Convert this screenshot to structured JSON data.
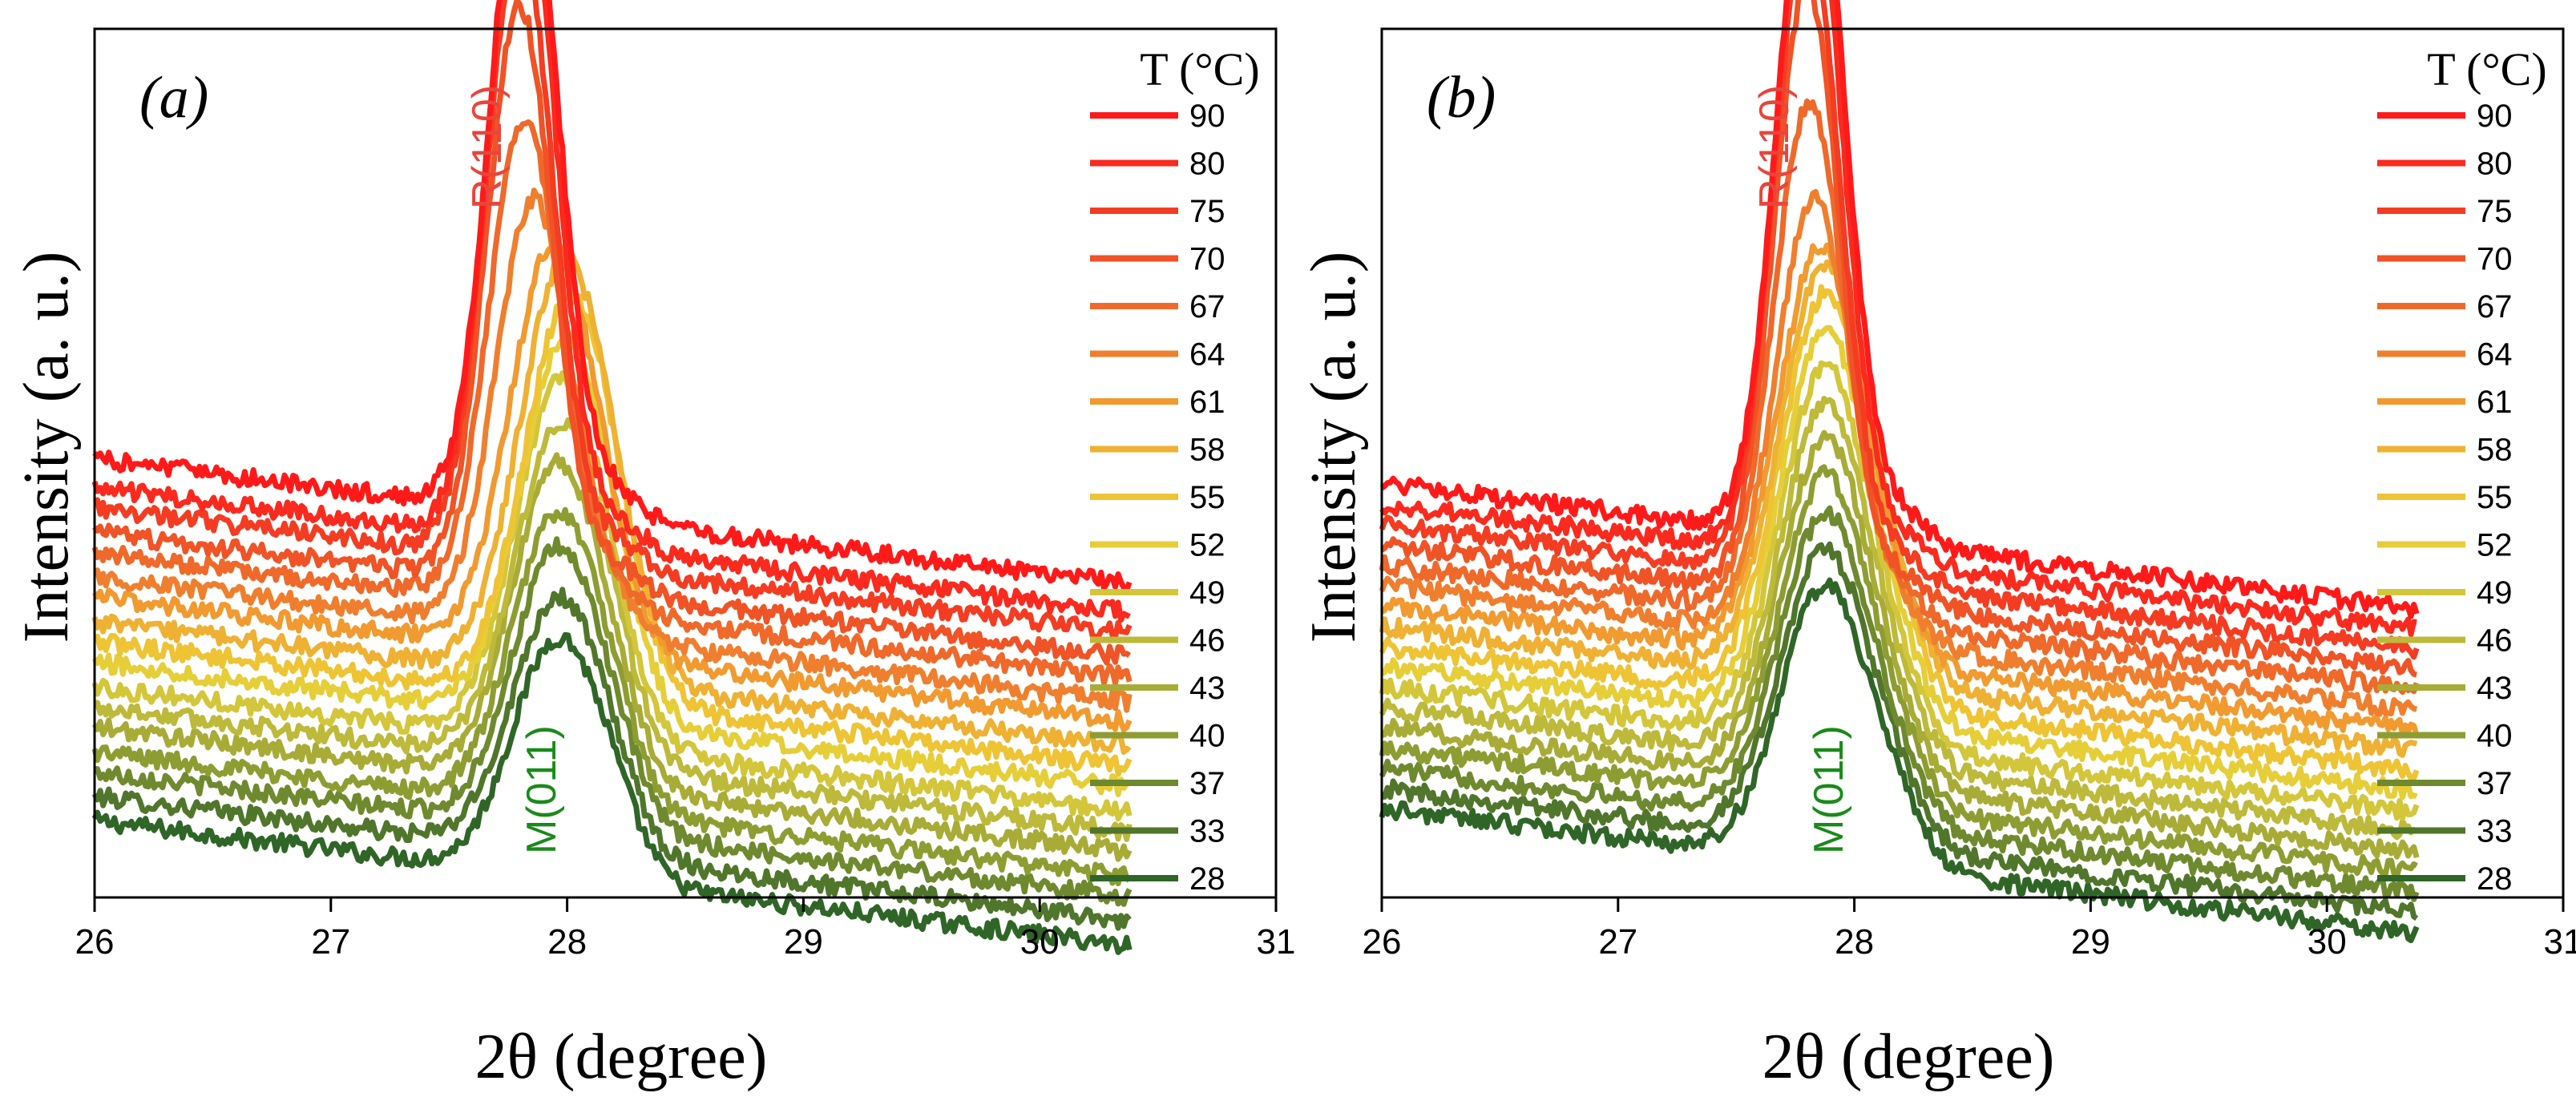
{
  "chart_data": [
    {
      "type": "line",
      "panel_label": "(a)",
      "xlabel": "2θ (degree)",
      "ylabel": "Intensity (a. u.)",
      "xlim": [
        26,
        31
      ],
      "x_ticks": [
        "26",
        "27",
        "28",
        "29",
        "30",
        "31"
      ],
      "y_ticks_shown": false,
      "legend_title": "T (°C)",
      "legend_position": "right",
      "annotations": [
        {
          "text": "R(110)",
          "color": "#e8453c"
        },
        {
          "text": "M(011)",
          "color": "#1a8a1a"
        }
      ],
      "series": [
        {
          "name": "90",
          "color": "#ff1a1a",
          "baseline": 0.49,
          "peak_x": 27.82,
          "peak_height": 0.84,
          "width": 0.14
        },
        {
          "name": "80",
          "color": "#fa2a1e",
          "baseline": 0.455,
          "peak_x": 27.81,
          "peak_height": 0.84,
          "width": 0.14
        },
        {
          "name": "75",
          "color": "#f43c22",
          "baseline": 0.43,
          "peak_x": 27.8,
          "peak_height": 0.77,
          "width": 0.14
        },
        {
          "name": "70",
          "color": "#f05326",
          "baseline": 0.4,
          "peak_x": 27.8,
          "peak_height": 0.71,
          "width": 0.14
        },
        {
          "name": "67",
          "color": "#ef692a",
          "baseline": 0.375,
          "peak_x": 27.82,
          "peak_height": 0.6,
          "width": 0.15
        },
        {
          "name": "64",
          "color": "#ef7f2e",
          "baseline": 0.345,
          "peak_x": 27.86,
          "peak_height": 0.53,
          "width": 0.16
        },
        {
          "name": "61",
          "color": "#f19a30",
          "baseline": 0.32,
          "peak_x": 27.94,
          "peak_height": 0.5,
          "width": 0.18
        },
        {
          "name": "58",
          "color": "#efb133",
          "baseline": 0.29,
          "peak_x": 27.99,
          "peak_height": 0.51,
          "width": 0.19
        },
        {
          "name": "55",
          "color": "#eec435",
          "baseline": 0.265,
          "peak_x": 28.01,
          "peak_height": 0.49,
          "width": 0.19
        },
        {
          "name": "52",
          "color": "#e6ce38",
          "baseline": 0.24,
          "peak_x": 27.99,
          "peak_height": 0.46,
          "width": 0.19
        },
        {
          "name": "49",
          "color": "#d3c63a",
          "baseline": 0.21,
          "peak_x": 27.97,
          "peak_height": 0.44,
          "width": 0.19
        },
        {
          "name": "46",
          "color": "#bdb93a",
          "baseline": 0.185,
          "peak_x": 27.97,
          "peak_height": 0.41,
          "width": 0.19
        },
        {
          "name": "43",
          "color": "#a8ac36",
          "baseline": 0.16,
          "peak_x": 27.96,
          "peak_height": 0.39,
          "width": 0.19
        },
        {
          "name": "40",
          "color": "#8e9d32",
          "baseline": 0.13,
          "peak_x": 27.96,
          "peak_height": 0.36,
          "width": 0.19
        },
        {
          "name": "37",
          "color": "#6f8a2e",
          "baseline": 0.105,
          "peak_x": 27.96,
          "peak_height": 0.34,
          "width": 0.19
        },
        {
          "name": "33",
          "color": "#50762b",
          "baseline": 0.075,
          "peak_x": 27.96,
          "peak_height": 0.31,
          "width": 0.19
        },
        {
          "name": "28",
          "color": "#2f6627",
          "baseline": 0.045,
          "peak_x": 27.96,
          "peak_height": 0.29,
          "width": 0.19
        }
      ]
    },
    {
      "type": "line",
      "panel_label": "(b)",
      "xlabel": "2θ (degree)",
      "ylabel": "Intensity (a. u.)",
      "xlim": [
        26,
        31
      ],
      "x_ticks": [
        "26",
        "27",
        "28",
        "29",
        "30",
        "31"
      ],
      "y_ticks_shown": false,
      "legend_title": "T (°C)",
      "legend_position": "right",
      "annotations": [
        {
          "text": "R(110)",
          "color": "#e8453c"
        },
        {
          "text": "M(011)",
          "color": "#1a8a1a"
        }
      ],
      "series": [
        {
          "name": "90",
          "color": "#ff1a1a",
          "baseline": 0.46,
          "peak_x": 27.82,
          "peak_height": 0.88,
          "width": 0.14
        },
        {
          "name": "80",
          "color": "#fa2a1e",
          "baseline": 0.435,
          "peak_x": 27.81,
          "peak_height": 0.86,
          "width": 0.14
        },
        {
          "name": "75",
          "color": "#f43c22",
          "baseline": 0.41,
          "peak_x": 27.8,
          "peak_height": 0.8,
          "width": 0.14
        },
        {
          "name": "70",
          "color": "#f05326",
          "baseline": 0.385,
          "peak_x": 27.8,
          "peak_height": 0.75,
          "width": 0.14
        },
        {
          "name": "67",
          "color": "#ef692a",
          "baseline": 0.36,
          "peak_x": 27.81,
          "peak_height": 0.63,
          "width": 0.15
        },
        {
          "name": "64",
          "color": "#ef7f2e",
          "baseline": 0.335,
          "peak_x": 27.83,
          "peak_height": 0.54,
          "width": 0.16
        },
        {
          "name": "61",
          "color": "#f19a30",
          "baseline": 0.31,
          "peak_x": 27.86,
          "peak_height": 0.51,
          "width": 0.18
        },
        {
          "name": "58",
          "color": "#efb133",
          "baseline": 0.285,
          "peak_x": 27.88,
          "peak_height": 0.51,
          "width": 0.19
        },
        {
          "name": "55",
          "color": "#eec435",
          "baseline": 0.26,
          "peak_x": 27.88,
          "peak_height": 0.5,
          "width": 0.19
        },
        {
          "name": "52",
          "color": "#e6ce38",
          "baseline": 0.235,
          "peak_x": 27.88,
          "peak_height": 0.48,
          "width": 0.19
        },
        {
          "name": "49",
          "color": "#d3c63a",
          "baseline": 0.21,
          "peak_x": 27.88,
          "peak_height": 0.46,
          "width": 0.19
        },
        {
          "name": "46",
          "color": "#bdb93a",
          "baseline": 0.185,
          "peak_x": 27.88,
          "peak_height": 0.44,
          "width": 0.19
        },
        {
          "name": "43",
          "color": "#a8ac36",
          "baseline": 0.16,
          "peak_x": 27.88,
          "peak_height": 0.42,
          "width": 0.19
        },
        {
          "name": "40",
          "color": "#8e9d32",
          "baseline": 0.135,
          "peak_x": 27.88,
          "peak_height": 0.4,
          "width": 0.19
        },
        {
          "name": "37",
          "color": "#6f8a2e",
          "baseline": 0.11,
          "peak_x": 27.88,
          "peak_height": 0.38,
          "width": 0.19
        },
        {
          "name": "33",
          "color": "#50762b",
          "baseline": 0.085,
          "peak_x": 27.88,
          "peak_height": 0.36,
          "width": 0.19
        },
        {
          "name": "28",
          "color": "#2f6627",
          "baseline": 0.06,
          "peak_x": 27.88,
          "peak_height": 0.34,
          "width": 0.19
        }
      ]
    }
  ]
}
